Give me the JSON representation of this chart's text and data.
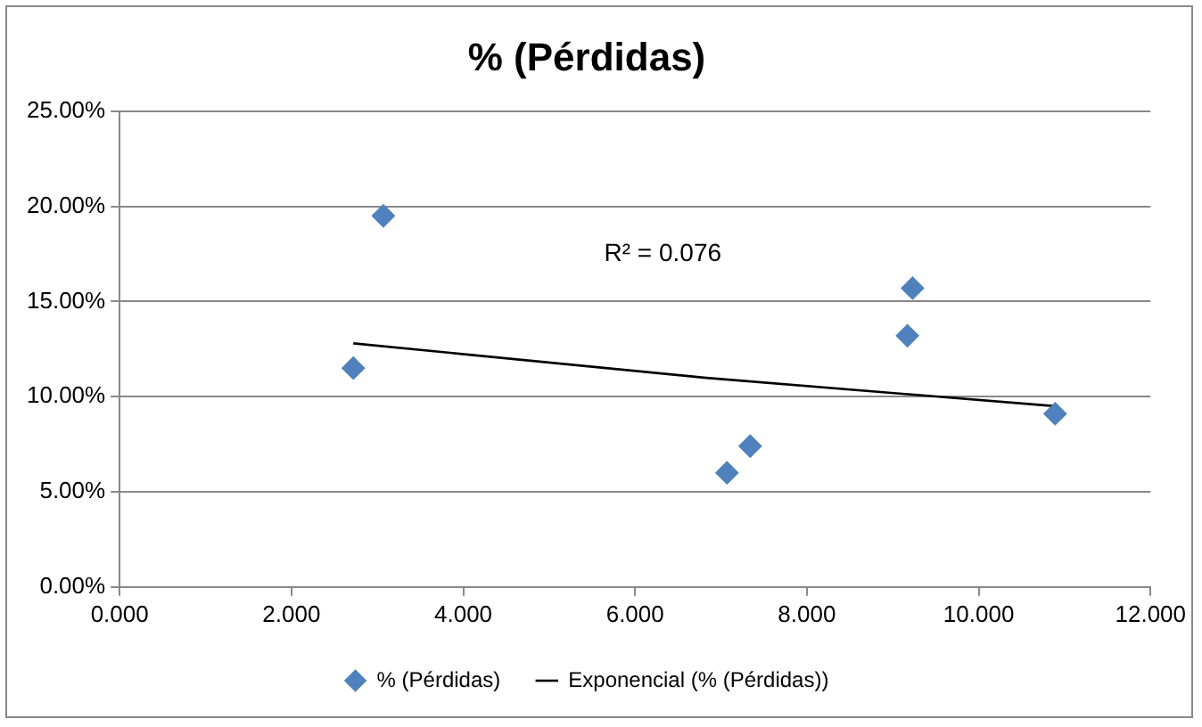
{
  "chart_data": {
    "type": "scatter",
    "title": "% (Pérdidas)",
    "marker": "diamond",
    "grid": "y",
    "legend": "bottom",
    "xlim": [
      0,
      12
    ],
    "xticks": [
      {
        "value": 0,
        "label": "0.000"
      },
      {
        "value": 2,
        "label": "2.000"
      },
      {
        "value": 4,
        "label": "4.000"
      },
      {
        "value": 6,
        "label": "6.000"
      },
      {
        "value": 8,
        "label": "8.000"
      },
      {
        "value": 10,
        "label": "10.000"
      },
      {
        "value": 12,
        "label": "12.000"
      }
    ],
    "ylim": [
      0,
      25
    ],
    "yticks": [
      {
        "value": 0,
        "label": "0.00%"
      },
      {
        "value": 5,
        "label": "5.00%"
      },
      {
        "value": 10,
        "label": "10.00%"
      },
      {
        "value": 15,
        "label": "15.00%"
      },
      {
        "value": 20,
        "label": "20.00%"
      },
      {
        "value": 25,
        "label": "25.00%"
      }
    ],
    "series": [
      {
        "name": "% (Pérdidas)",
        "color": "#4f81bd",
        "x": [
          2.72,
          3.07,
          7.07,
          7.34,
          9.17,
          9.23,
          10.89
        ],
        "values": [
          11.5,
          19.5,
          6.0,
          7.4,
          13.2,
          15.7,
          9.1
        ]
      },
      {
        "name": "Exponencial (% (Pérdidas))",
        "type": "line",
        "marker": "none",
        "color": "#000000",
        "x": [
          2.72,
          6.8,
          10.89
        ],
        "values": [
          12.8,
          11.0,
          9.5
        ]
      }
    ],
    "annotations": [
      "R² = 0.076"
    ]
  }
}
